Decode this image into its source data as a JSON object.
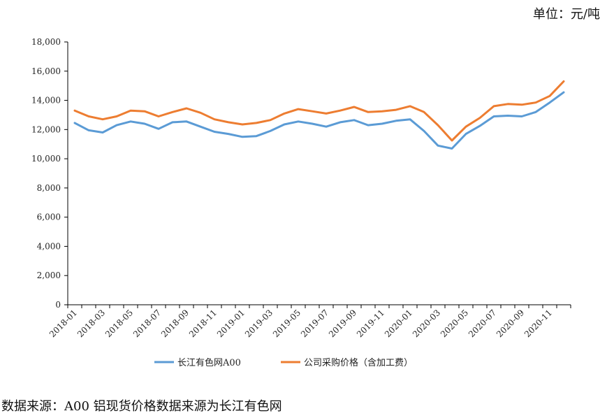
{
  "unit_label": "单位：元/吨",
  "source_note": "数据来源：A00 铝现货价格数据来源为长江有色网",
  "chart_data": {
    "type": "line",
    "title": "",
    "xlabel": "",
    "ylabel": "",
    "ylim": [
      0,
      18000
    ],
    "y_ticks": [
      0,
      2000,
      4000,
      6000,
      8000,
      10000,
      12000,
      14000,
      16000,
      18000
    ],
    "y_tick_labels": [
      "0",
      "2,000",
      "4,000",
      "6,000",
      "8,000",
      "10,000",
      "12,000",
      "14,000",
      "16,000",
      "18,000"
    ],
    "grid": false,
    "legend": "bottom",
    "categories": [
      "2018-01",
      "2018-02",
      "2018-03",
      "2018-04",
      "2018-05",
      "2018-06",
      "2018-07",
      "2018-08",
      "2018-09",
      "2018-10",
      "2018-11",
      "2018-12",
      "2019-01",
      "2019-02",
      "2019-03",
      "2019-04",
      "2019-05",
      "2019-06",
      "2019-07",
      "2019-08",
      "2019-09",
      "2019-10",
      "2019-11",
      "2019-12",
      "2020-01",
      "2020-02",
      "2020-03",
      "2020-04",
      "2020-05",
      "2020-06",
      "2020-07",
      "2020-08",
      "2020-09",
      "2020-10",
      "2020-11",
      "2020-12"
    ],
    "x_tick_labels": [
      "2018-01",
      "2018-03",
      "2018-05",
      "2018-07",
      "2018-09",
      "2018-11",
      "2019-01",
      "2019-03",
      "2019-05",
      "2019-07",
      "2019-09",
      "2019-11",
      "2020-01",
      "2020-03",
      "2020-05",
      "2020-07",
      "2020-09",
      "2020-11"
    ],
    "series": [
      {
        "name": "长江有色网A00",
        "color": "#5b9bd5",
        "values": [
          12450,
          11950,
          11800,
          12300,
          12550,
          12400,
          12050,
          12500,
          12550,
          12200,
          11850,
          11700,
          11500,
          11550,
          11900,
          12350,
          12550,
          12400,
          12200,
          12500,
          12650,
          12300,
          12400,
          12600,
          12700,
          11900,
          10900,
          10700,
          11700,
          12250,
          12900,
          12950,
          12900,
          13200,
          13850,
          14550
        ]
      },
      {
        "name": "公司采购价格（含加工费）",
        "color": "#ed7d31",
        "values": [
          13300,
          12900,
          12700,
          12900,
          13300,
          13250,
          12900,
          13200,
          13450,
          13150,
          12700,
          12500,
          12350,
          12450,
          12650,
          13100,
          13400,
          13250,
          13100,
          13300,
          13550,
          13200,
          13250,
          13350,
          13600,
          13200,
          12300,
          11250,
          12200,
          12800,
          13600,
          13750,
          13700,
          13850,
          14300,
          15300
        ]
      }
    ]
  }
}
